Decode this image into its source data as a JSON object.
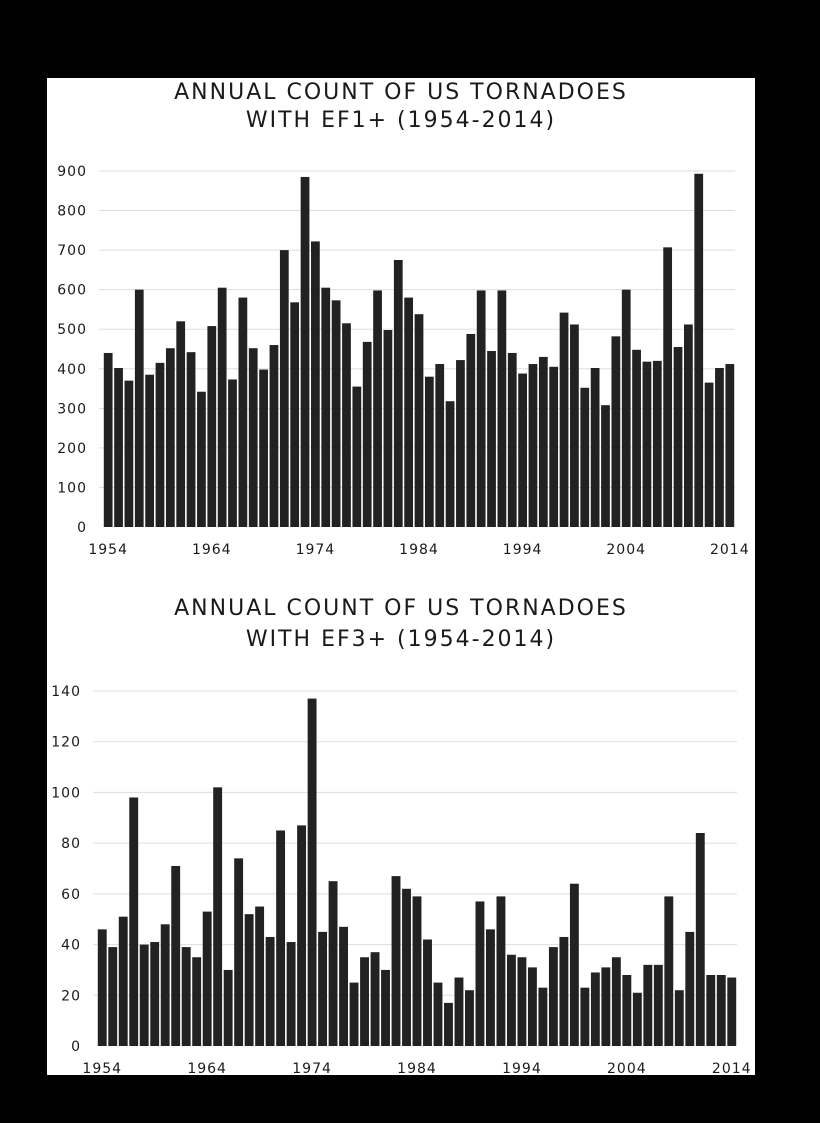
{
  "colors": {
    "background": "#000000",
    "panel": "#ffffff",
    "bar": "#222222",
    "grid": "#dddddd",
    "text": "#1a1a1a"
  },
  "chart_data": [
    {
      "type": "bar",
      "title": "ANNUAL COUNT OF US TORNADOES",
      "subtitle": "WITH EF1+ (1954-2014)",
      "xlabel": "",
      "ylabel": "",
      "ylim": [
        0,
        900
      ],
      "yticks": [
        0,
        100,
        200,
        300,
        400,
        500,
        600,
        700,
        800,
        900
      ],
      "xticks": [
        "1954",
        "1964",
        "1974",
        "1984",
        "1994",
        "2004",
        "2014"
      ],
      "grid": true,
      "x": [
        1954,
        1955,
        1956,
        1957,
        1958,
        1959,
        1960,
        1961,
        1962,
        1963,
        1964,
        1965,
        1966,
        1967,
        1968,
        1969,
        1970,
        1971,
        1972,
        1973,
        1974,
        1975,
        1976,
        1977,
        1978,
        1979,
        1980,
        1981,
        1982,
        1983,
        1984,
        1985,
        1986,
        1987,
        1988,
        1989,
        1990,
        1991,
        1992,
        1993,
        1994,
        1995,
        1996,
        1997,
        1998,
        1999,
        2000,
        2001,
        2002,
        2003,
        2004,
        2005,
        2006,
        2007,
        2008,
        2009,
        2010,
        2011,
        2012,
        2013,
        2014
      ],
      "values": [
        440,
        402,
        370,
        600,
        385,
        415,
        452,
        520,
        442,
        342,
        508,
        605,
        373,
        580,
        452,
        398,
        460,
        700,
        568,
        885,
        722,
        605,
        573,
        515,
        355,
        468,
        598,
        498,
        675,
        580,
        538,
        380,
        412,
        318,
        422,
        488,
        598,
        445,
        598,
        440,
        388,
        412,
        430,
        405,
        542,
        512,
        352,
        402,
        308,
        482,
        600,
        448,
        418,
        420,
        707,
        455,
        512,
        893,
        365,
        402,
        412
      ]
    },
    {
      "type": "bar",
      "title": "ANNUAL COUNT OF US TORNADOES",
      "subtitle": "WITH EF3+ (1954-2014)",
      "xlabel": "",
      "ylabel": "",
      "ylim": [
        0,
        140
      ],
      "yticks": [
        0,
        20,
        40,
        60,
        80,
        100,
        120,
        140
      ],
      "xticks": [
        "1954",
        "1964",
        "1974",
        "1984",
        "1994",
        "2004",
        "2014"
      ],
      "grid": true,
      "x": [
        1954,
        1955,
        1956,
        1957,
        1958,
        1959,
        1960,
        1961,
        1962,
        1963,
        1964,
        1965,
        1966,
        1967,
        1968,
        1969,
        1970,
        1971,
        1972,
        1973,
        1974,
        1975,
        1976,
        1977,
        1978,
        1979,
        1980,
        1981,
        1982,
        1983,
        1984,
        1985,
        1986,
        1987,
        1988,
        1989,
        1990,
        1991,
        1992,
        1993,
        1994,
        1995,
        1996,
        1997,
        1998,
        1999,
        2000,
        2001,
        2002,
        2003,
        2004,
        2005,
        2006,
        2007,
        2008,
        2009,
        2010,
        2011,
        2012,
        2013,
        2014
      ],
      "values": [
        46,
        39,
        51,
        98,
        40,
        41,
        48,
        71,
        39,
        35,
        53,
        102,
        30,
        74,
        52,
        55,
        43,
        85,
        41,
        87,
        137,
        45,
        65,
        47,
        25,
        35,
        37,
        30,
        67,
        62,
        59,
        42,
        25,
        17,
        27,
        22,
        57,
        46,
        59,
        36,
        35,
        31,
        23,
        39,
        43,
        64,
        23,
        29,
        31,
        35,
        28,
        21,
        32,
        32,
        59,
        22,
        45,
        84,
        28,
        28,
        27
      ]
    }
  ]
}
